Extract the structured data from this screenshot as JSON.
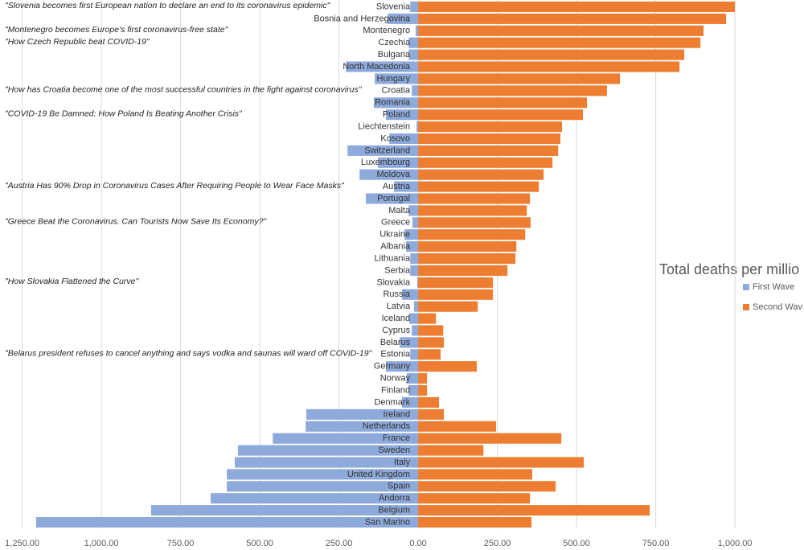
{
  "chart_data": {
    "type": "butterfly-bar",
    "orientation": "horizontal",
    "legend_title": "Total deaths per millio",
    "legend": "right",
    "grid": true,
    "categories": [
      "Slovenia",
      "Bosnia and Herzegovina",
      "Montenegro",
      "Czechia",
      "Bulgaria",
      "North Macedonia",
      "Hungary",
      "Croatia",
      "Romania",
      "Poland",
      "Liechtenstein",
      "Kosovo",
      "Switzerland",
      "Luxembourg",
      "Moldova",
      "Austria",
      "Portugal",
      "Malta",
      "Greece",
      "Ukraine",
      "Albania",
      "Lithuania",
      "Serbia",
      "Slovakia",
      "Russia",
      "Latvia",
      "Iceland",
      "Cyprus",
      "Belarus",
      "Estonia",
      "Germany",
      "Norway",
      "Finland",
      "Denmark",
      "Ireland",
      "Netherlands",
      "France",
      "Sweden",
      "Italy",
      "United Kingdom",
      "Spain",
      "Andorra",
      "Belgium",
      "San Marino"
    ],
    "series": [
      {
        "name": "First Wave",
        "color": "#8eaadb",
        "values": [
          -25,
          -96,
          -8,
          -30,
          -30,
          -228,
          -137,
          -20,
          -140,
          -102,
          -5,
          -91,
          -223,
          -127,
          -185,
          -76,
          -165,
          -30,
          -18,
          -43,
          -38,
          -25,
          -25,
          -3,
          -51,
          -13,
          -28,
          -20,
          -58,
          -25,
          -102,
          -36,
          -30,
          -51,
          -353,
          -355,
          -459,
          -569,
          -579,
          -604,
          -604,
          -655,
          -843,
          -1206
        ]
      },
      {
        "name": "Second Wav",
        "color": "#ed7d31",
        "values": [
          1000,
          972,
          901,
          891,
          840,
          825,
          637,
          596,
          533,
          520,
          454,
          449,
          442,
          424,
          396,
          381,
          353,
          343,
          355,
          338,
          310,
          307,
          282,
          236,
          236,
          188,
          56,
          79,
          81,
          71,
          185,
          28,
          28,
          66,
          81,
          246,
          452,
          206,
          523,
          360,
          434,
          353,
          731,
          358
        ]
      }
    ],
    "xlim": [
      -1320,
      1218
    ],
    "xticks": [
      {
        "value": -1250,
        "label": "1,250.00"
      },
      {
        "value": -1000,
        "label": "1,000.00"
      },
      {
        "value": -750,
        "label": "750.00"
      },
      {
        "value": -500,
        "label": "500.00"
      },
      {
        "value": -250,
        "label": "250.00"
      },
      {
        "value": 0,
        "label": "0.00"
      },
      {
        "value": 250,
        "label": "250.00"
      },
      {
        "value": 500,
        "label": "500.00"
      },
      {
        "value": 750,
        "label": "750.00"
      },
      {
        "value": 1000,
        "label": "1,000.00"
      }
    ],
    "annotations": [
      "\"Slovenia becomes first European nation to declare an end to its coronavirus epidemic\"",
      "\"Montenegro becomes Europe's first coronavirus-free state\"",
      "\"How Czech Republic beat COVID-19\"",
      "\"How has Croatia become one of the most successful countries in the fight against coronavirus\"",
      "\"COVID-19 Be Damned: How Poland Is Beating Another Crisis\"",
      "\"Austria Has 90% Drop in Coronavirus Cases After Requiring People to Wear Face Masks\"",
      "\"Greece Beat the Coronavirus. Can Tourists Now Save Its Economy?\"",
      "\"How Slovakia Flattened the Curve\"",
      "\"Belarus president refuses to cancel anything and says vodka and saunas will ward off COVID-19\""
    ]
  }
}
